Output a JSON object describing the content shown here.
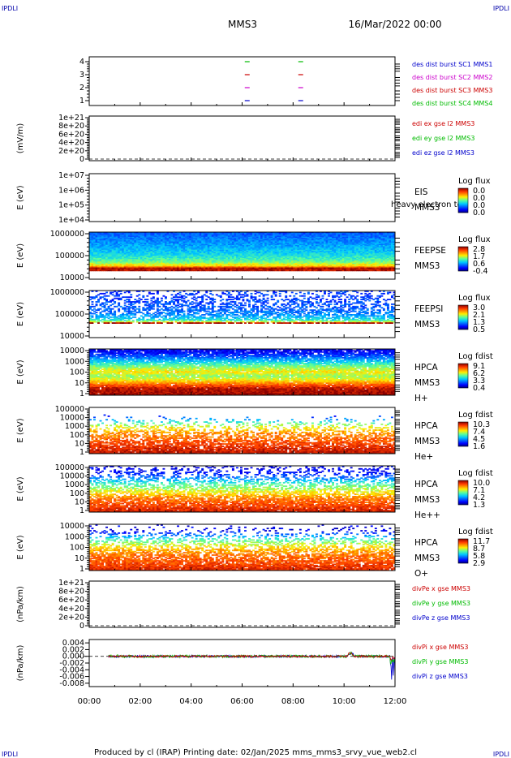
{
  "header": {
    "corner_left": "IPDLI",
    "corner_right": "IPDLI",
    "title": "MMS3",
    "date": "16/Mar/2022 00:00"
  },
  "footer": {
    "text": "Produced by cl (IRAP)   Printing date: 02/Jan/2025   mms_mms3_srvy_vue_web2.cl",
    "corner_left": "IPDLI",
    "corner_right": "IPDLI"
  },
  "colors": {
    "mms1": "#0000cc",
    "mms2": "#cc00cc",
    "mms3": "#cc0000",
    "mms4": "#00bb00",
    "x": "#cc0000",
    "y": "#00bb00",
    "z": "#0000cc"
  },
  "chart_data": {
    "type": "heatmap",
    "x_ticks": [
      "00:00",
      "02:00",
      "04:00",
      "06:00",
      "08:00",
      "10:00",
      "12:00"
    ],
    "x_range_hours": [
      0,
      12
    ],
    "panels": [
      {
        "id": "burst",
        "kind": "burst",
        "ylabel": "",
        "ticks": [
          "4",
          "3",
          "2",
          "1"
        ],
        "legend": [
          {
            "text": "des dist burst SC1 MMS1",
            "color": "#0000cc"
          },
          {
            "text": "des dist burst SC2 MMS2",
            "color": "#cc00cc"
          },
          {
            "text": "des dist burst SC3 MMS3",
            "color": "#cc0000"
          },
          {
            "text": "des dist burst SC4 MMS4",
            "color": "#00bb00"
          }
        ],
        "segments": [
          {
            "sc": 4,
            "t": 6.2,
            "color": "#00bb00"
          },
          {
            "sc": 4,
            "t": 8.3,
            "color": "#00bb00"
          },
          {
            "sc": 3,
            "t": 6.2,
            "color": "#cc0000"
          },
          {
            "sc": 3,
            "t": 8.3,
            "color": "#cc0000"
          },
          {
            "sc": 2,
            "t": 6.2,
            "color": "#cc00cc"
          },
          {
            "sc": 2,
            "t": 8.3,
            "color": "#cc00cc"
          },
          {
            "sc": 1,
            "t": 6.2,
            "color": "#0000cc"
          },
          {
            "sc": 1,
            "t": 8.3,
            "color": "#0000cc"
          }
        ]
      },
      {
        "id": "edi",
        "kind": "line-empty",
        "ylabel": "(mV/m)",
        "ticks": [
          "1e+21",
          "8e+20",
          "6e+20",
          "4e+20",
          "2e+20",
          "0"
        ],
        "legend": [
          {
            "text": "edi ex gse l2 MMS3",
            "color": "#cc0000"
          },
          {
            "text": "edi ey gse l2 MMS3",
            "color": "#00bb00"
          },
          {
            "text": "edi ez gse l2 MMS3",
            "color": "#0000cc"
          }
        ]
      },
      {
        "id": "eis",
        "kind": "spectro-empty",
        "ylabel": "E (eV)",
        "ticks": [
          "1e+07",
          "1e+06",
          "1e+05",
          "1e+04"
        ],
        "label_lines": [
          "EIS",
          "MMS3"
        ],
        "overlay_text": "heavy electron to",
        "cbar_title": "Log flux",
        "cbar_ticks": [
          "0.0",
          "0.0",
          "0.0",
          "0.0"
        ]
      },
      {
        "id": "feepse",
        "kind": "spectro",
        "ylabel": "E (eV)",
        "ticks": [
          "1000000",
          "100000",
          "10000"
        ],
        "label_lines": [
          "FEEPSE",
          "MMS3"
        ],
        "cbar_title": "Log flux",
        "cbar_ticks": [
          "2.8",
          "1.7",
          "0.6",
          "-0.4"
        ],
        "profile": [
          [
            0.0,
            0.22
          ],
          [
            0.18,
            0.28
          ],
          [
            0.45,
            0.38
          ],
          [
            0.62,
            0.5
          ],
          [
            0.68,
            0.6
          ],
          [
            0.7,
            0.7
          ],
          [
            0.72,
            0.62
          ],
          [
            0.76,
            0.95
          ],
          [
            0.82,
            0.95
          ],
          [
            0.88,
            null
          ],
          [
            1.0,
            null
          ]
        ],
        "sparsity": 0.0
      },
      {
        "id": "feepsi",
        "kind": "spectro",
        "ylabel": "E (eV)",
        "ticks": [
          "1000000",
          "100000",
          "10000"
        ],
        "label_lines": [
          "FEEPSI",
          "MMS3"
        ],
        "cbar_title": "Log flux",
        "cbar_ticks": [
          "3.0",
          "2.1",
          "1.3",
          "0.5"
        ],
        "profile": [
          [
            0.0,
            0.18
          ],
          [
            0.25,
            0.2
          ],
          [
            0.45,
            0.25
          ],
          [
            0.55,
            0.32
          ],
          [
            0.62,
            0.42
          ],
          [
            0.66,
            0.55
          ],
          [
            0.68,
            0.95
          ],
          [
            0.71,
            0.95
          ],
          [
            0.74,
            null
          ],
          [
            1.0,
            null
          ]
        ],
        "sparsity": 0.55
      },
      {
        "id": "hpca-h",
        "kind": "spectro",
        "ylabel": "E (eV)",
        "ticks": [
          "10000",
          "1000",
          "100",
          "10",
          "1"
        ],
        "label_lines": [
          "HPCA",
          "MMS3",
          "H+"
        ],
        "cbar_title": "Log fdist",
        "cbar_ticks": [
          "9.1",
          "6.2",
          "3.3",
          "0.4"
        ],
        "profile": [
          [
            0.0,
            0.1
          ],
          [
            0.1,
            0.15
          ],
          [
            0.22,
            0.3
          ],
          [
            0.32,
            0.45
          ],
          [
            0.4,
            0.55
          ],
          [
            0.5,
            0.65
          ],
          [
            0.58,
            0.55
          ],
          [
            0.66,
            0.62
          ],
          [
            0.76,
            0.8
          ],
          [
            0.86,
            0.95
          ],
          [
            1.0,
            0.98
          ]
        ],
        "sparsity": 0.1
      },
      {
        "id": "hpca-he",
        "kind": "spectro",
        "ylabel": "E (eV)",
        "ticks": [
          "100000",
          "10000",
          "1000",
          "100",
          "10",
          "1"
        ],
        "label_lines": [
          "HPCA",
          "MMS3",
          "He+"
        ],
        "cbar_title": "Log fdist",
        "cbar_ticks": [
          "10.3",
          "7.4",
          "4.5",
          "1.6"
        ],
        "profile": [
          [
            0.0,
            0.1
          ],
          [
            0.16,
            0.1
          ],
          [
            0.2,
            0.2
          ],
          [
            0.26,
            0.3
          ],
          [
            0.32,
            0.45
          ],
          [
            0.4,
            0.6
          ],
          [
            0.55,
            0.75
          ],
          [
            1.0,
            0.95
          ]
        ],
        "sparsity": 0.85
      },
      {
        "id": "hpca-hepp",
        "kind": "spectro",
        "ylabel": "E (eV)",
        "ticks": [
          "100000",
          "10000",
          "1000",
          "100",
          "10",
          "1"
        ],
        "label_lines": [
          "HPCA",
          "MMS3",
          "He++"
        ],
        "cbar_title": "Log fdist",
        "cbar_ticks": [
          "10.0",
          "7.1",
          "4.2",
          "1.3"
        ],
        "profile": [
          [
            0.0,
            0.1
          ],
          [
            0.16,
            0.15
          ],
          [
            0.22,
            0.22
          ],
          [
            0.28,
            0.3
          ],
          [
            0.34,
            0.4
          ],
          [
            0.42,
            0.5
          ],
          [
            0.55,
            0.62
          ],
          [
            0.7,
            0.78
          ],
          [
            1.0,
            0.92
          ]
        ],
        "sparsity": 0.6
      },
      {
        "id": "hpca-o",
        "kind": "spectro",
        "ylabel": "E (eV)",
        "ticks": [
          "10000",
          "1000",
          "100",
          "10",
          "1"
        ],
        "label_lines": [
          "HPCA",
          "MMS3",
          "O+"
        ],
        "cbar_title": "Log fdist",
        "cbar_ticks": [
          "11.7",
          "8.7",
          "5.8",
          "2.9"
        ],
        "profile": [
          [
            0.0,
            0.1
          ],
          [
            0.12,
            0.1
          ],
          [
            0.2,
            0.2
          ],
          [
            0.25,
            0.3
          ],
          [
            0.32,
            0.45
          ],
          [
            0.4,
            0.55
          ],
          [
            0.5,
            0.68
          ],
          [
            0.65,
            0.78
          ],
          [
            1.0,
            0.9
          ]
        ],
        "sparsity": 0.7
      },
      {
        "id": "divpe",
        "kind": "line-empty",
        "ylabel": "(nPa/km)",
        "ticks": [
          "1e+21",
          "8e+20",
          "6e+20",
          "4e+20",
          "2e+20",
          "0"
        ],
        "legend": [
          {
            "text": "divPe x gse MMS3",
            "color": "#cc0000"
          },
          {
            "text": "divPe y gse MMS3",
            "color": "#00bb00"
          },
          {
            "text": "divPe z gse MMS3",
            "color": "#0000cc"
          }
        ]
      },
      {
        "id": "divpi",
        "kind": "lines",
        "ylabel": "(nPa/km)",
        "ticks": [
          "0.004",
          "0.002",
          "0.000",
          "-0.002",
          "-0.004",
          "-0.006",
          "-0.008"
        ],
        "ylim": [
          -0.009,
          0.005
        ],
        "legend": [
          {
            "text": "divPi x gse MMS3",
            "color": "#cc0000"
          },
          {
            "text": "divPi y gse MMS3",
            "color": "#00bb00"
          },
          {
            "text": "divPi z gse MMS3",
            "color": "#0000cc"
          }
        ],
        "series": [
          {
            "name": "x",
            "color": "#cc0000",
            "start": 0.75,
            "noise": 0.0003
          },
          {
            "name": "y",
            "color": "#00bb00",
            "start": 0.75,
            "noise": 0.0004
          },
          {
            "name": "z",
            "color": "#0000cc",
            "start": 0.75,
            "noise": 0.00035
          }
        ]
      }
    ]
  }
}
